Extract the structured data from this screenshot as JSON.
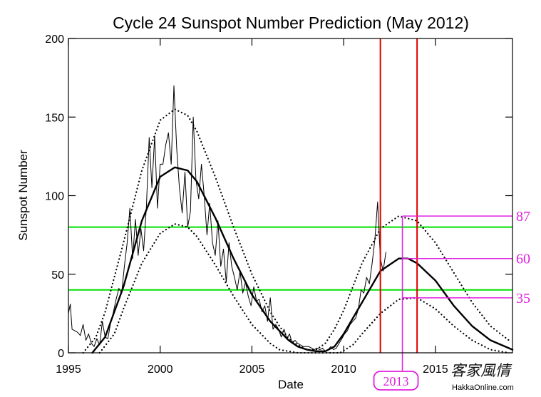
{
  "chart_data": {
    "type": "line",
    "title": "Cycle 24 Sunspot Number Prediction (May 2012)",
    "xlabel": "Date",
    "ylabel": "Sunspot Number",
    "xlim": [
      1995,
      2019.2
    ],
    "ylim": [
      0,
      200
    ],
    "x_ticks": [
      1995,
      2000,
      2005,
      2010,
      2015
    ],
    "x_tick_labels": [
      "1995",
      "2000",
      "2005",
      "2010",
      "2015"
    ],
    "y_ticks": [
      0,
      50,
      100,
      150,
      200
    ],
    "y_tick_labels": [
      "0",
      "50",
      "100",
      "150",
      "200"
    ],
    "grid": false,
    "series": [
      {
        "style": "thin-solid",
        "color": "#000000",
        "x": [
          1995.0,
          1995.1,
          1995.2,
          1995.35,
          1995.5,
          1995.65,
          1995.8,
          1995.95,
          1996.1,
          1996.25,
          1996.4,
          1996.55,
          1996.7,
          1996.85,
          1997.0,
          1997.15,
          1997.3,
          1997.45,
          1997.6,
          1997.75,
          1997.9,
          1998.05,
          1998.2,
          1998.35,
          1998.5,
          1998.65,
          1998.8,
          1998.95,
          1999.1,
          1999.25,
          1999.4,
          1999.55,
          1999.7,
          1999.85,
          2000.0,
          2000.15,
          2000.3,
          2000.45,
          2000.6,
          2000.75,
          2000.9,
          2001.05,
          2001.2,
          2001.35,
          2001.5,
          2001.65,
          2001.8,
          2001.95,
          2002.1,
          2002.25,
          2002.4,
          2002.55,
          2002.7,
          2002.85,
          2003.0,
          2003.15,
          2003.3,
          2003.45,
          2003.6,
          2003.75,
          2003.9,
          2004.05,
          2004.2,
          2004.35,
          2004.5,
          2004.65,
          2004.8,
          2004.95,
          2005.1,
          2005.25,
          2005.4,
          2005.55,
          2005.7,
          2005.85,
          2006.0,
          2006.15,
          2006.3,
          2006.45,
          2006.6,
          2006.75,
          2006.9,
          2007.05,
          2007.2,
          2007.35,
          2007.5,
          2007.65,
          2007.8,
          2007.95,
          2008.1,
          2008.25,
          2008.4,
          2008.55,
          2008.7,
          2008.85,
          2009.0,
          2009.15,
          2009.3,
          2009.45,
          2009.6,
          2009.75,
          2009.9,
          2010.05,
          2010.2,
          2010.35,
          2010.5,
          2010.65,
          2010.8,
          2010.95,
          2011.1,
          2011.25,
          2011.4,
          2011.55,
          2011.7,
          2011.85,
          2012.0,
          2012.15,
          2012.3
        ],
        "values": [
          25,
          31,
          15,
          14,
          13,
          11,
          18,
          8,
          12,
          6,
          4,
          9,
          5,
          20,
          10,
          9,
          19,
          26,
          34,
          41,
          38,
          55,
          70,
          92,
          60,
          85,
          62,
          79,
          65,
          93,
          137,
          105,
          138,
          92,
          120,
          120,
          132,
          140,
          120,
          170,
          130,
          105,
          89,
          115,
          80,
          90,
          150,
          110,
          98,
          120,
          100,
          75,
          95,
          70,
          62,
          84,
          55,
          66,
          45,
          70,
          55,
          48,
          40,
          52,
          38,
          45,
          36,
          30,
          42,
          33,
          34,
          26,
          30,
          20,
          35,
          15,
          18,
          15,
          10,
          15,
          9,
          12,
          6,
          8,
          6,
          5,
          4,
          4,
          4,
          3,
          2,
          3,
          2,
          3,
          1,
          2,
          4,
          2,
          3,
          6,
          9,
          12,
          14,
          18,
          20,
          22,
          28,
          40,
          38,
          48,
          44,
          57,
          72,
          96,
          60,
          52,
          64
        ]
      },
      {
        "style": "thick-solid",
        "color": "#000000",
        "x": [
          1996.3,
          1997,
          1998,
          1999,
          2000,
          2000.8,
          2001.5,
          2002,
          2003,
          2004,
          2005,
          2006,
          2007,
          2007.5,
          2008,
          2008.5,
          2009,
          2009.5,
          2010,
          2011,
          2012,
          2013,
          2013.5,
          2014,
          2015,
          2016,
          2017,
          2018,
          2019.2
        ],
        "values": [
          0,
          10,
          42,
          84,
          112,
          118,
          116,
          109,
          86,
          60,
          37,
          20,
          8,
          4,
          2,
          1,
          1,
          4,
          12,
          32,
          52,
          60,
          60,
          57,
          46,
          30,
          17,
          8,
          2
        ]
      },
      {
        "style": "dotted",
        "color": "#000000",
        "x": [
          1995.8,
          1996.5,
          1997,
          1998,
          1999,
          2000,
          2000.8,
          2001.5,
          2002,
          2003,
          2004,
          2005,
          2006,
          2006.5,
          2007,
          2007.5,
          2008,
          2008.5,
          2009,
          2009.5,
          2010,
          2011,
          2012,
          2013,
          2014,
          2015,
          2016,
          2017,
          2018,
          2019
        ],
        "values": [
          0,
          10,
          26,
          70,
          116,
          148,
          155,
          151,
          141,
          112,
          80,
          50,
          26,
          17,
          9,
          5,
          2,
          2,
          6,
          15,
          27,
          57,
          79,
          87,
          84,
          70,
          51,
          32,
          17,
          8
        ]
      },
      {
        "style": "dotted",
        "color": "#000000",
        "x": [
          1996.7,
          1997.5,
          1998,
          1999,
          2000,
          2000.8,
          2001.5,
          2002,
          2003,
          2004,
          2005,
          2006,
          2006.5,
          2007,
          2007.5,
          2008,
          2008.5,
          2009,
          2009.8,
          2010.5,
          2011,
          2012,
          2013,
          2014,
          2015,
          2016,
          2017,
          2018,
          2019
        ],
        "values": [
          0,
          12,
          28,
          57,
          76,
          82,
          80,
          74,
          56,
          36,
          18,
          6,
          2,
          1,
          0,
          0,
          0,
          0,
          0,
          5,
          12,
          25,
          34,
          35,
          28,
          17,
          8,
          2,
          0
        ]
      }
    ],
    "reference_lines": {
      "horizontal_green": [
        80,
        40
      ],
      "vertical_red": [
        2012.0,
        2014.0
      ],
      "green_color": "#00e000",
      "red_color": "#e00000"
    },
    "annotations": {
      "color": "#e020e0",
      "marker_year": 2013.2,
      "levels": [
        {
          "value": 87,
          "label": "87"
        },
        {
          "value": 60,
          "label": "60"
        },
        {
          "value": 35,
          "label": "35"
        }
      ],
      "year_label": "2013"
    },
    "watermark": {
      "cjk": "客家風情",
      "url": "HakkaOnline.com"
    }
  }
}
